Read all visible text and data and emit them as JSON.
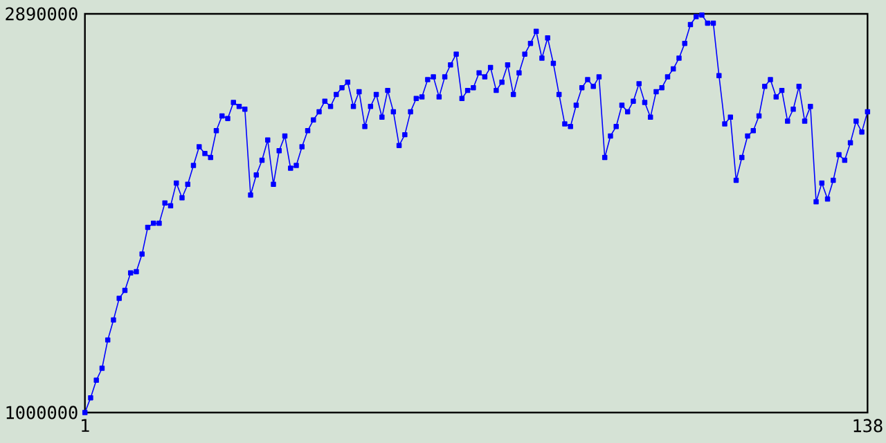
{
  "chart_data": {
    "type": "line",
    "x": [
      1,
      2,
      3,
      4,
      5,
      6,
      7,
      8,
      9,
      10,
      11,
      12,
      13,
      14,
      15,
      16,
      17,
      18,
      19,
      20,
      21,
      22,
      23,
      24,
      25,
      26,
      27,
      28,
      29,
      30,
      31,
      32,
      33,
      34,
      35,
      36,
      37,
      38,
      39,
      40,
      41,
      42,
      43,
      44,
      45,
      46,
      47,
      48,
      49,
      50,
      51,
      52,
      53,
      54,
      55,
      56,
      57,
      58,
      59,
      60,
      61,
      62,
      63,
      64,
      65,
      66,
      67,
      68,
      69,
      70,
      71,
      72,
      73,
      74,
      75,
      76,
      77,
      78,
      79,
      80,
      81,
      82,
      83,
      84,
      85,
      86,
      87,
      88,
      89,
      90,
      91,
      92,
      93,
      94,
      95,
      96,
      97,
      98,
      99,
      100,
      101,
      102,
      103,
      104,
      105,
      106,
      107,
      108,
      109,
      110,
      111,
      112,
      113,
      114,
      115,
      116,
      117,
      118,
      119,
      120,
      121,
      122,
      123,
      124,
      125,
      126,
      127,
      128,
      129,
      130,
      131,
      132,
      133,
      134,
      135,
      136,
      137,
      138
    ],
    "series": [
      {
        "color": "#0000ff",
        "values": [
          1000000,
          1070000,
          1153000,
          1210000,
          1344000,
          1439000,
          1541000,
          1579000,
          1662000,
          1668000,
          1751000,
          1878000,
          1897000,
          1897000,
          1993000,
          1980000,
          2088000,
          2018000,
          2082000,
          2171000,
          2260000,
          2228000,
          2209000,
          2336000,
          2406000,
          2394000,
          2470000,
          2451000,
          2438000,
          2031000,
          2126000,
          2196000,
          2292000,
          2082000,
          2241000,
          2311000,
          2158000,
          2171000,
          2260000,
          2336000,
          2387000,
          2426000,
          2476000,
          2451000,
          2508000,
          2540000,
          2566000,
          2451000,
          2521000,
          2356000,
          2451000,
          2508000,
          2400000,
          2527000,
          2426000,
          2266000,
          2317000,
          2426000,
          2489000,
          2496000,
          2578000,
          2591000,
          2496000,
          2591000,
          2648000,
          2699000,
          2489000,
          2527000,
          2540000,
          2610000,
          2591000,
          2636000,
          2527000,
          2566000,
          2648000,
          2508000,
          2610000,
          2699000,
          2750000,
          2807000,
          2680000,
          2776000,
          2655000,
          2508000,
          2368000,
          2356000,
          2457000,
          2540000,
          2578000,
          2546000,
          2591000,
          2209000,
          2311000,
          2356000,
          2457000,
          2426000,
          2476000,
          2559000,
          2470000,
          2400000,
          2521000,
          2540000,
          2591000,
          2629000,
          2680000,
          2750000,
          2839000,
          2877000,
          2884000,
          2846000,
          2846000,
          2597000,
          2368000,
          2400000,
          2101000,
          2209000,
          2311000,
          2336000,
          2406000,
          2546000,
          2578000,
          2496000,
          2527000,
          2381000,
          2438000,
          2546000,
          2381000,
          2451000,
          1999000,
          2088000,
          2012000,
          2101000,
          2222000,
          2196000,
          2279000,
          2381000,
          2330000,
          2426000
        ]
      }
    ],
    "xlim": [
      1,
      138
    ],
    "xticks": [
      1,
      138
    ],
    "ylim": [
      1000000,
      2890000
    ],
    "yticks": [
      1000000,
      2890000
    ],
    "marker": "square",
    "line_style": "solid"
  }
}
